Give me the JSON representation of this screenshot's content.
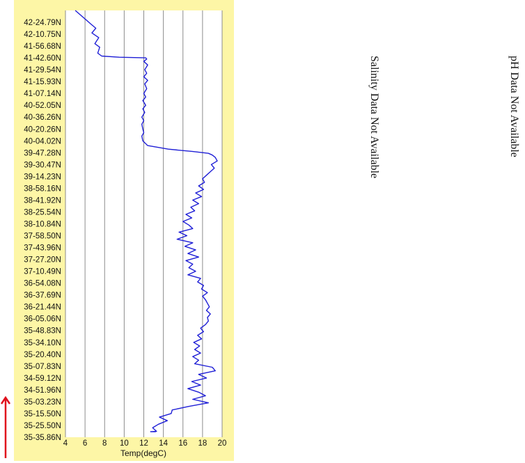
{
  "chart_data": {
    "type": "line",
    "orientation": "vertical-profile",
    "xlabel": "Temp(degC)",
    "xlim": [
      4,
      20
    ],
    "x_ticks": [
      4,
      6,
      8,
      10,
      12,
      14,
      16,
      18,
      20
    ],
    "y_tick_labels": [
      "42-24.79N",
      "42-10.75N",
      "41-56.68N",
      "41-42.60N",
      "41-29.54N",
      "41-15.93N",
      "41-07.14N",
      "40-52.05N",
      "40-36.26N",
      "40-20.26N",
      "40-04.02N",
      "39-47.28N",
      "39-30.47N",
      "39-14.23N",
      "38-58.16N",
      "38-41.92N",
      "38-25.54N",
      "38-10.84N",
      "37-58.50N",
      "37-43.96N",
      "37-27.20N",
      "37-10.49N",
      "36-54.08N",
      "36-37.69N",
      "36-21.44N",
      "36-05.06N",
      "35-48.83N",
      "35-34.10N",
      "35-20.40N",
      "35-07.83N",
      "34-59.12N",
      "34-51.96N",
      "35-03.23N",
      "35-15.50N",
      "35-25.50N",
      "35-35.86N"
    ],
    "grid": "vertical",
    "line_color": "#1f1fd6",
    "series": [
      {
        "y_index": [
          0,
          0.15,
          0.5,
          0.9,
          1.3,
          1.8,
          2.1,
          2.6,
          2.85,
          2.95,
          3.0,
          3.1,
          3.3,
          3.6,
          4.0,
          4.3,
          4.6,
          4.9,
          5.2,
          5.6,
          6.0,
          6.3,
          6.6,
          7.0,
          7.3,
          7.6,
          8.0,
          8.3,
          8.6,
          9.0,
          9.3,
          9.6,
          10.0,
          10.4,
          10.7,
          10.9,
          11.05,
          11.2,
          11.4,
          11.7,
          12.0,
          12.3,
          12.6,
          12.9,
          13.2,
          13.5,
          13.8,
          14.1,
          14.4,
          14.7,
          15.0,
          15.3,
          15.6,
          15.9,
          16.2,
          16.5,
          16.8,
          17.1,
          17.4,
          17.7,
          18.0,
          18.3,
          18.6,
          18.9,
          19.2,
          19.5,
          19.8,
          20.1,
          20.4,
          20.7,
          21.0,
          21.3,
          21.6,
          21.9,
          22.2,
          22.5,
          22.8,
          23.1,
          23.4,
          23.7,
          24.0,
          24.3,
          24.6,
          24.9,
          25.2,
          25.5,
          25.8,
          26.1,
          26.4,
          26.7,
          27.0,
          27.3,
          27.6,
          27.9,
          28.2,
          28.5,
          28.8,
          29.1,
          29.4,
          29.7,
          30.0,
          30.3,
          30.6,
          30.9,
          31.2,
          31.5,
          31.8,
          32.1,
          32.4,
          32.7,
          33.0,
          33.3,
          33.6,
          33.9,
          34.2,
          34.5,
          34.8,
          35.1,
          35.4,
          35.7,
          36.0
        ],
        "temp": [
          5.0,
          6.6,
          7.1,
          6.7,
          7.4,
          7.0,
          7.5,
          7.3,
          7.7,
          9.5,
          12.2,
          12.3,
          12.0,
          12.4,
          12.1,
          12.3,
          12.0,
          12.4,
          12.1,
          12.3,
          12.0,
          12.2,
          11.9,
          12.2,
          11.9,
          12.1,
          11.8,
          12.0,
          11.8,
          11.9,
          12.0,
          11.8,
          11.9,
          12.4,
          14.5,
          17.0,
          18.6,
          19.0,
          19.3,
          19.5,
          18.9,
          19.2,
          18.8,
          18.4,
          18.0,
          18.2,
          17.6,
          18.1,
          17.3,
          17.9,
          17.0,
          17.6,
          16.8,
          17.2,
          16.3,
          16.9,
          16.0,
          16.6,
          17.0,
          15.6,
          16.4,
          15.4,
          17.0,
          16.2,
          17.3,
          16.5,
          17.6,
          16.3,
          17.0,
          16.6,
          17.3,
          16.5,
          17.8,
          17.5,
          18.1,
          17.9,
          18.5,
          18.0,
          18.3,
          18.5,
          18.7,
          18.4,
          18.8,
          18.5,
          18.6,
          18.3,
          17.8,
          18.1,
          17.5,
          17.9,
          17.1,
          17.7,
          17.2,
          17.8,
          17.0,
          17.6,
          17.2,
          19.0,
          19.3,
          17.6,
          18.4,
          16.9,
          17.8,
          16.5,
          17.6,
          18.3,
          17.0,
          18.6,
          16.6,
          14.9,
          14.8,
          13.6,
          14.4,
          13.5,
          12.9,
          13.3,
          12.8,
          13.1,
          12.7,
          13.2,
          13.0
        ]
      }
    ]
  },
  "notes": {
    "salinity": "Salinity Data Not Available",
    "ph": "pH Data Not Available"
  },
  "colors": {
    "panel_background": "#fdf6a6",
    "plot_background": "#ffffff",
    "grid": "#8c8c8c",
    "indicator_arrow": "#e0101c"
  },
  "indicator": {
    "direction": "up",
    "icon": "arrow-up-icon"
  }
}
